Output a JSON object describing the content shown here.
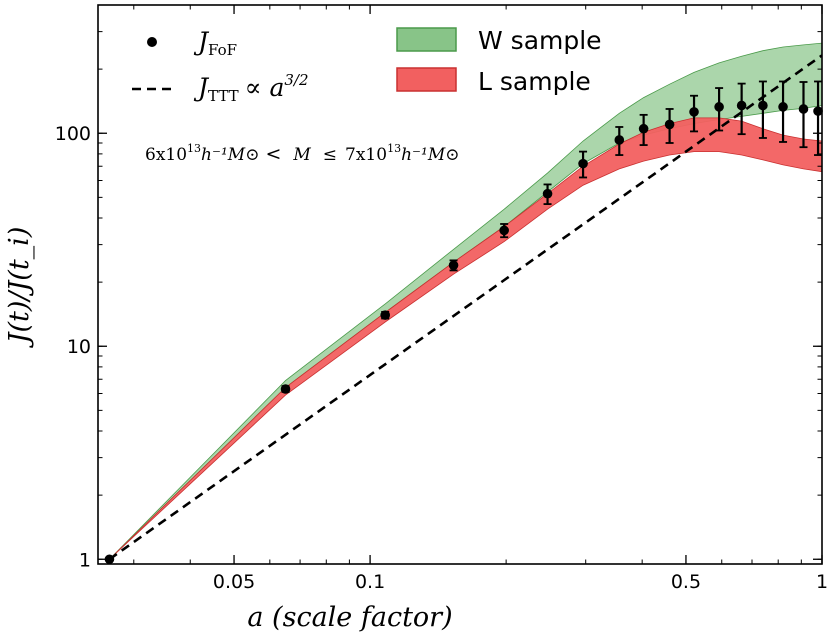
{
  "chart_data": {
    "type": "line",
    "xscale": "log",
    "yscale": "log",
    "xlim": [
      0.025,
      1.0
    ],
    "ylim": [
      0.95,
      400
    ],
    "xlabel": "a (scale factor)",
    "ylabel": "J(t)/J(t_i)",
    "x_ticks": [
      {
        "value": 0.05,
        "label": "0.05"
      },
      {
        "value": 0.1,
        "label": "0.1"
      },
      {
        "value": 0.5,
        "label": "0.5"
      },
      {
        "value": 1.0,
        "label": "1"
      }
    ],
    "y_ticks": [
      {
        "value": 1,
        "label": "1"
      },
      {
        "value": 10,
        "label": "10"
      },
      {
        "value": 100,
        "label": "100"
      }
    ],
    "annotation": {
      "m_low": "6x10",
      "m_low_exp": "13",
      "m_high": "7x10",
      "m_high_exp": "13",
      "units": "h⁻¹M⊙",
      "lt": "<",
      "leq": "≤",
      "var": "M"
    },
    "legend": {
      "jfof": {
        "main": "J",
        "sub": "FoF"
      },
      "jttt": {
        "main": "J",
        "sub": "TTT",
        "rel": "∝ a",
        "exp": "3/2"
      },
      "w": "W sample",
      "l": "L sample"
    },
    "colors": {
      "w_fill": "#88c488",
      "w_edge": "#4a9a4a",
      "l_fill": "#f26060",
      "l_edge": "#c93030",
      "points": "#000000"
    },
    "series": [
      {
        "name": "J_FoF",
        "kind": "points_errorbars",
        "x": [
          0.0265,
          0.065,
          0.108,
          0.153,
          0.198,
          0.247,
          0.296,
          0.356,
          0.403,
          0.46,
          0.521,
          0.592,
          0.664,
          0.74,
          0.82,
          0.91,
          0.98
        ],
        "y": [
          1.0,
          6.3,
          14.0,
          24.0,
          35.0,
          52.0,
          72.0,
          93.0,
          105.0,
          110.0,
          126.0,
          133.0,
          135.0,
          135.0,
          133.0,
          130.0,
          127.0
        ],
        "err": [
          0,
          0.2,
          0.5,
          1.3,
          2.5,
          5.5,
          10,
          14,
          17,
          20,
          24,
          30,
          36,
          40,
          42,
          44,
          48
        ]
      },
      {
        "name": "J_TTT",
        "kind": "dashed_line",
        "x": [
          0.0265,
          1.0
        ],
        "y": [
          1.0,
          232.0
        ]
      },
      {
        "name": "W sample",
        "kind": "band",
        "x": [
          0.0265,
          0.065,
          0.108,
          0.153,
          0.198,
          0.247,
          0.296,
          0.356,
          0.403,
          0.46,
          0.521,
          0.592,
          0.664,
          0.74,
          0.82,
          0.91,
          1.0
        ],
        "lower": [
          1.0,
          6.4,
          14.4,
          24.8,
          36.5,
          53.0,
          72.0,
          90.0,
          98.0,
          105.0,
          111.0,
          116.0,
          120.0,
          124.0,
          128.0,
          131.0,
          135.0
        ],
        "upper": [
          1.0,
          6.9,
          15.8,
          28.5,
          44.0,
          65.0,
          92.0,
          124.0,
          147.0,
          170.0,
          193.0,
          214.0,
          230.0,
          244.0,
          254.0,
          260.0,
          265.0
        ]
      },
      {
        "name": "L sample",
        "kind": "band",
        "x": [
          0.0265,
          0.065,
          0.108,
          0.153,
          0.198,
          0.247,
          0.296,
          0.356,
          0.403,
          0.46,
          0.521,
          0.592,
          0.664,
          0.74,
          0.82,
          0.91,
          1.0
        ],
        "lower": [
          1.0,
          5.9,
          13.0,
          21.8,
          31.0,
          44.0,
          57.0,
          68.0,
          74.0,
          79.0,
          82.0,
          82.0,
          79.0,
          75.0,
          71.0,
          68.0,
          66.0
        ],
        "upper": [
          1.0,
          6.4,
          14.4,
          24.8,
          36.5,
          52.0,
          70.0,
          89.0,
          101.0,
          111.0,
          118.0,
          118.0,
          114.0,
          105.0,
          98.0,
          94.0,
          92.0
        ]
      }
    ]
  }
}
